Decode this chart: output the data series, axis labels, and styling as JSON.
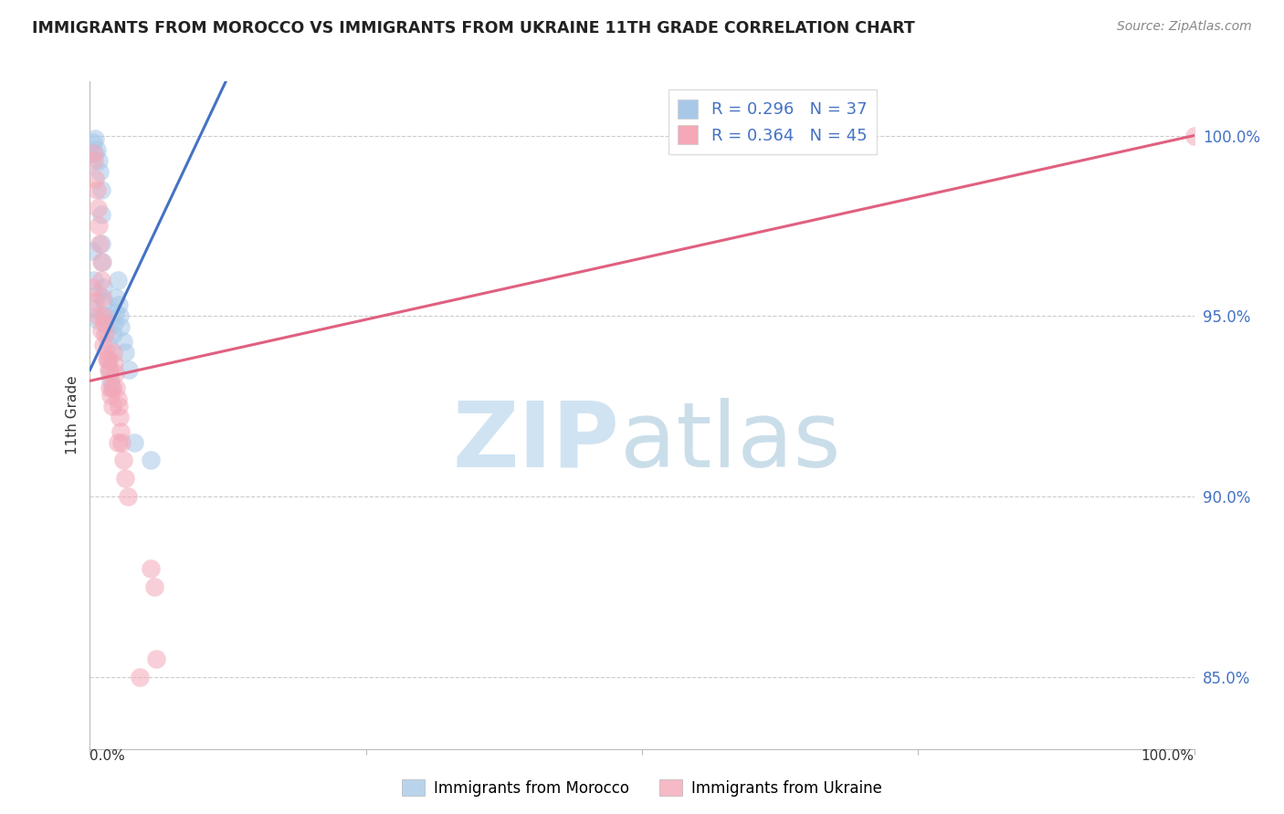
{
  "title": "IMMIGRANTS FROM MOROCCO VS IMMIGRANTS FROM UKRAINE 11TH GRADE CORRELATION CHART",
  "source": "Source: ZipAtlas.com",
  "ylabel": "11th Grade",
  "xlim": [
    0,
    100
  ],
  "ylim": [
    83,
    101.5
  ],
  "yticks": [
    85,
    90,
    95,
    100
  ],
  "ytick_labels": [
    "85.0%",
    "90.0%",
    "95.0%",
    "100.0%"
  ],
  "morocco_R": 0.296,
  "morocco_N": 37,
  "ukraine_R": 0.364,
  "ukraine_N": 45,
  "morocco_color": "#A8C8E8",
  "ukraine_color": "#F4A8B8",
  "morocco_line_color": "#4472C4",
  "ukraine_line_color": "#E06080",
  "background_color": "#FFFFFF",
  "morocco_x": [
    0.3,
    0.5,
    0.5,
    0.6,
    0.8,
    0.9,
    1.0,
    1.0,
    1.0,
    1.1,
    1.2,
    1.3,
    1.4,
    1.5,
    1.6,
    1.7,
    1.8,
    1.9,
    2.0,
    2.1,
    2.2,
    2.3,
    2.4,
    2.5,
    2.6,
    2.7,
    2.8,
    3.0,
    3.2,
    3.5,
    0.2,
    0.4,
    0.7,
    0.3,
    0.6,
    5.5,
    4.0
  ],
  "morocco_y": [
    99.8,
    99.9,
    99.5,
    99.6,
    99.3,
    99.0,
    98.5,
    97.8,
    97.0,
    96.5,
    95.8,
    95.4,
    95.0,
    94.6,
    94.2,
    93.8,
    93.5,
    93.2,
    93.0,
    94.5,
    94.8,
    95.1,
    95.5,
    96.0,
    95.3,
    95.0,
    94.7,
    94.3,
    94.0,
    93.5,
    96.8,
    96.0,
    95.6,
    95.2,
    94.9,
    91.0,
    91.5
  ],
  "ukraine_x": [
    0.3,
    0.4,
    0.5,
    0.6,
    0.7,
    0.8,
    0.9,
    1.0,
    1.0,
    1.1,
    1.2,
    1.3,
    1.4,
    1.5,
    1.6,
    1.7,
    1.8,
    1.9,
    2.0,
    2.1,
    2.2,
    2.3,
    2.4,
    2.5,
    2.6,
    2.7,
    2.8,
    2.9,
    3.0,
    3.2,
    3.4,
    0.2,
    0.5,
    0.7,
    1.0,
    1.2,
    1.5,
    1.8,
    2.0,
    2.5,
    5.5,
    5.8,
    6.0,
    4.5,
    100.0
  ],
  "ukraine_y": [
    99.5,
    99.3,
    98.8,
    98.5,
    98.0,
    97.5,
    97.0,
    96.5,
    96.0,
    95.5,
    95.0,
    94.8,
    94.5,
    94.0,
    93.8,
    93.5,
    93.0,
    92.8,
    92.5,
    94.0,
    93.7,
    93.4,
    93.0,
    92.7,
    92.5,
    92.2,
    91.8,
    91.5,
    91.0,
    90.5,
    90.0,
    95.8,
    95.4,
    95.0,
    94.6,
    94.2,
    93.8,
    93.4,
    93.0,
    91.5,
    88.0,
    87.5,
    85.5,
    85.0,
    100.0
  ]
}
